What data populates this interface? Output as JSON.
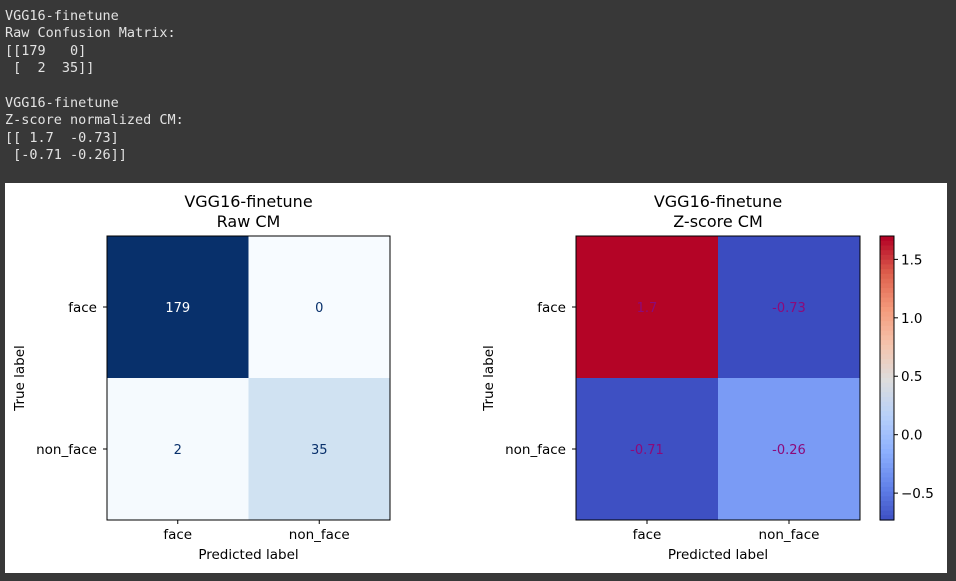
{
  "console": {
    "lines": [
      "VGG16-finetune",
      "Raw Confusion Matrix:",
      "[[179   0]",
      " [  2  35]]",
      "",
      "VGG16-finetune",
      "Z-score normalized CM:",
      "[[ 1.7  -0.73]",
      " [-0.71 -0.26]]"
    ]
  },
  "chart_data": [
    {
      "type": "heatmap",
      "title": "VGG16-finetune\nRaw CM",
      "xlabel": "Predicted label",
      "ylabel": "True label",
      "x_categories": [
        "face",
        "non_face"
      ],
      "y_categories": [
        "face",
        "non_face"
      ],
      "values": [
        [
          179,
          0
        ],
        [
          2,
          35
        ]
      ],
      "cell_labels": [
        [
          "179",
          "0"
        ],
        [
          "2",
          "35"
        ]
      ],
      "colormap": "Blues",
      "vmin": 0,
      "vmax": 179,
      "colorbar": false
    },
    {
      "type": "heatmap",
      "title": "VGG16-finetune\nZ-score CM",
      "xlabel": "Predicted label",
      "ylabel": "True label",
      "x_categories": [
        "face",
        "non_face"
      ],
      "y_categories": [
        "face",
        "non_face"
      ],
      "values": [
        [
          1.7,
          -0.73
        ],
        [
          -0.71,
          -0.26
        ]
      ],
      "cell_labels": [
        [
          "1.7",
          "-0.73"
        ],
        [
          "-0.71",
          "-0.26"
        ]
      ],
      "colormap": "coolwarm",
      "vmin": -0.73,
      "vmax": 1.7,
      "colorbar": true,
      "colorbar_ticks": [
        -0.5,
        0.0,
        0.5,
        1.0,
        1.5
      ],
      "colorbar_tick_labels": [
        "−0.5",
        "0.0",
        "0.5",
        "1.0",
        "1.5"
      ]
    }
  ]
}
